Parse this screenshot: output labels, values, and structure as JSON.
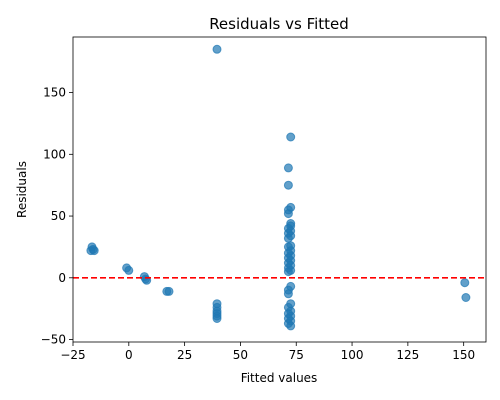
{
  "chart_data": {
    "type": "scatter",
    "title": "Residuals vs Fitted",
    "xlabel": "Fitted values",
    "ylabel": "Residuals",
    "xlim": [
      -25,
      160
    ],
    "ylim": [
      -52,
      195
    ],
    "xticks": [
      -25,
      0,
      25,
      50,
      75,
      100,
      125,
      150
    ],
    "yticks": [
      -50,
      0,
      50,
      100,
      150
    ],
    "grid": false,
    "point_color": "#1f77b4",
    "reference_line": {
      "y": 0,
      "color": "#ff0000",
      "style": "dashed"
    },
    "points": [
      [
        39.5,
        185
      ],
      [
        72.5,
        114
      ],
      [
        71.5,
        89
      ],
      [
        71.5,
        75
      ],
      [
        72.5,
        57
      ],
      [
        71.5,
        55
      ],
      [
        71.5,
        52
      ],
      [
        72.5,
        44
      ],
      [
        72.5,
        42
      ],
      [
        71.5,
        40
      ],
      [
        72.5,
        38
      ],
      [
        71.5,
        36
      ],
      [
        72.5,
        34
      ],
      [
        71.5,
        32
      ],
      [
        72.5,
        26
      ],
      [
        71.5,
        25
      ],
      [
        72.5,
        22
      ],
      [
        71.5,
        20
      ],
      [
        72.5,
        18
      ],
      [
        71.5,
        16
      ],
      [
        72.5,
        14
      ],
      [
        71.5,
        12
      ],
      [
        72.5,
        10
      ],
      [
        71.5,
        8
      ],
      [
        72.5,
        6
      ],
      [
        71.5,
        5
      ],
      [
        72.5,
        -7
      ],
      [
        71.5,
        -10
      ],
      [
        71.5,
        -13
      ],
      [
        72.5,
        -21
      ],
      [
        71.5,
        -24
      ],
      [
        72.5,
        -27
      ],
      [
        71.5,
        -29
      ],
      [
        72.5,
        -31
      ],
      [
        71.5,
        -33
      ],
      [
        72.5,
        -35
      ],
      [
        71.5,
        -37
      ],
      [
        72.5,
        -39
      ],
      [
        -16.5,
        25
      ],
      [
        -16,
        23
      ],
      [
        -17,
        22
      ],
      [
        -15.5,
        22
      ],
      [
        -1,
        8
      ],
      [
        0,
        6
      ],
      [
        7,
        1
      ],
      [
        7.5,
        -1
      ],
      [
        8,
        -2
      ],
      [
        17,
        -11
      ],
      [
        18,
        -11
      ],
      [
        39.5,
        -21
      ],
      [
        39.5,
        -24
      ],
      [
        39.5,
        -27
      ],
      [
        39.5,
        -29
      ],
      [
        39.5,
        -31
      ],
      [
        39.5,
        -33
      ],
      [
        150.5,
        -4
      ],
      [
        151,
        -16
      ]
    ]
  }
}
